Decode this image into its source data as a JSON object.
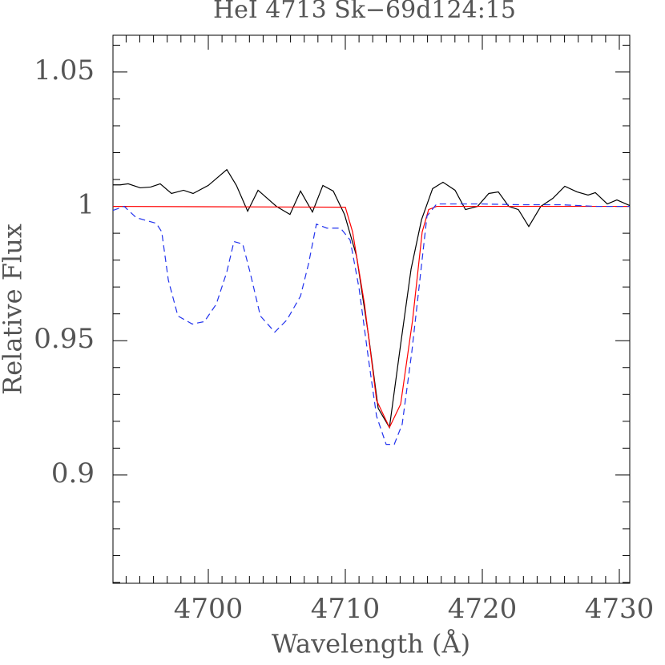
{
  "chart_data": {
    "type": "line",
    "title": "HeI 4713 Sk−69d124:15",
    "x_label": "Wavelength (Å)",
    "y_label": "Relative Flux",
    "xlim": [
      4693.04,
      4730.76
    ],
    "ylim": [
      0.8597,
      1.0637
    ],
    "xticks": [
      4700,
      4710,
      4720,
      4730
    ],
    "yticks": [
      0.9,
      0.95,
      1,
      1.05
    ],
    "xminor_ticks": [
      4694,
      4695,
      4696,
      4697,
      4698,
      4699,
      4701,
      4702,
      4703,
      4704,
      4705,
      4706,
      4707,
      4708,
      4709,
      4711,
      4712,
      4713,
      4714,
      4715,
      4716,
      4717,
      4718,
      4719,
      4721,
      4722,
      4723,
      4724,
      4725,
      4726,
      4727,
      4728,
      4729
    ],
    "yminor_ticks": [
      0.86,
      0.87,
      0.88,
      0.89,
      0.91,
      0.92,
      0.93,
      0.94,
      0.96,
      0.97,
      0.98,
      0.99,
      1.01,
      1.02,
      1.03,
      1.04,
      1.06
    ],
    "series": [
      {
        "color": "#000000",
        "dash": false,
        "x": [
          4693.04,
          4693.57,
          4694.15,
          4695.03,
          4695.79,
          4696.49,
          4697.31,
          4698.19,
          4698.89,
          4700.0,
          4701.35,
          4702.05,
          4702.87,
          4703.63,
          4704.97,
          4705.96,
          4706.73,
          4707.6,
          4708.36,
          4709.12,
          4709.94,
          4710.82,
          4711.7,
          4712.4,
          4713.22,
          4714.04,
          4714.8,
          4715.56,
          4716.37,
          4717.13,
          4718.01,
          4718.77,
          4719.65,
          4720.47,
          4721.17,
          4721.93,
          4722.63,
          4723.39,
          4724.27,
          4725.15,
          4726.02,
          4726.9,
          4727.72,
          4728.25,
          4729.12,
          4729.82,
          4730.76
        ],
        "values": [
          1.008,
          1.008,
          1.0084,
          1.0069,
          1.0072,
          1.0084,
          1.0048,
          1.006,
          1.0048,
          1.0078,
          1.0137,
          1.0078,
          0.9982,
          1.006,
          1.0,
          0.997,
          1.0057,
          0.9979,
          1.0078,
          1.0057,
          0.997,
          0.9815,
          0.9517,
          0.9248,
          0.9177,
          0.9487,
          0.9767,
          0.995,
          1.0066,
          1.009,
          1.006,
          0.9988,
          1.0,
          1.0048,
          1.0054,
          1.0,
          0.9988,
          0.9925,
          1.0,
          1.003,
          1.0075,
          1.0054,
          1.0042,
          1.0051,
          1.0009,
          1.0024,
          1.0003
        ]
      },
      {
        "color": "#ff0000",
        "dash": false,
        "x": [
          4693.04,
          4710.0,
          4710.53,
          4711.4,
          4712.28,
          4713.22,
          4714.04,
          4714.91,
          4715.61,
          4716.08,
          4716.67,
          4730.76
        ],
        "values": [
          1.0,
          0.9997,
          0.9905,
          0.9636,
          0.9278,
          0.9177,
          0.9264,
          0.9577,
          0.9905,
          0.9988,
          1.0,
          1.0
        ]
      },
      {
        "color": "#2233ee",
        "dash": true,
        "x": [
          4693.04,
          4693.86,
          4694.74,
          4696.2,
          4696.6,
          4697.08,
          4697.78,
          4698.83,
          4699.71,
          4700.58,
          4701.35,
          4701.87,
          4702.51,
          4703.04,
          4703.8,
          4704.85,
          4705.73,
          4706.73,
          4707.31,
          4707.89,
          4708.65,
          4709.65,
          4710.35,
          4711.0,
          4711.7,
          4712.28,
          4712.98,
          4713.57,
          4714.15,
          4714.85,
          4715.44,
          4715.96,
          4716.67,
          4719.88,
          4722.81,
          4725.73,
          4728.36,
          4730.76
        ],
        "values": [
          0.9985,
          1.0,
          0.9958,
          0.9937,
          0.9905,
          0.9726,
          0.9592,
          0.9562,
          0.9571,
          0.9636,
          0.9756,
          0.9869,
          0.986,
          0.9756,
          0.9592,
          0.9532,
          0.9577,
          0.9666,
          0.9785,
          0.9934,
          0.9919,
          0.9919,
          0.9875,
          0.9696,
          0.9428,
          0.9219,
          0.9114,
          0.9114,
          0.9189,
          0.9457,
          0.9726,
          0.9964,
          1.0009,
          1.0009,
          1.0006,
          1.0006,
          1.0,
          1.0
        ]
      }
    ]
  }
}
